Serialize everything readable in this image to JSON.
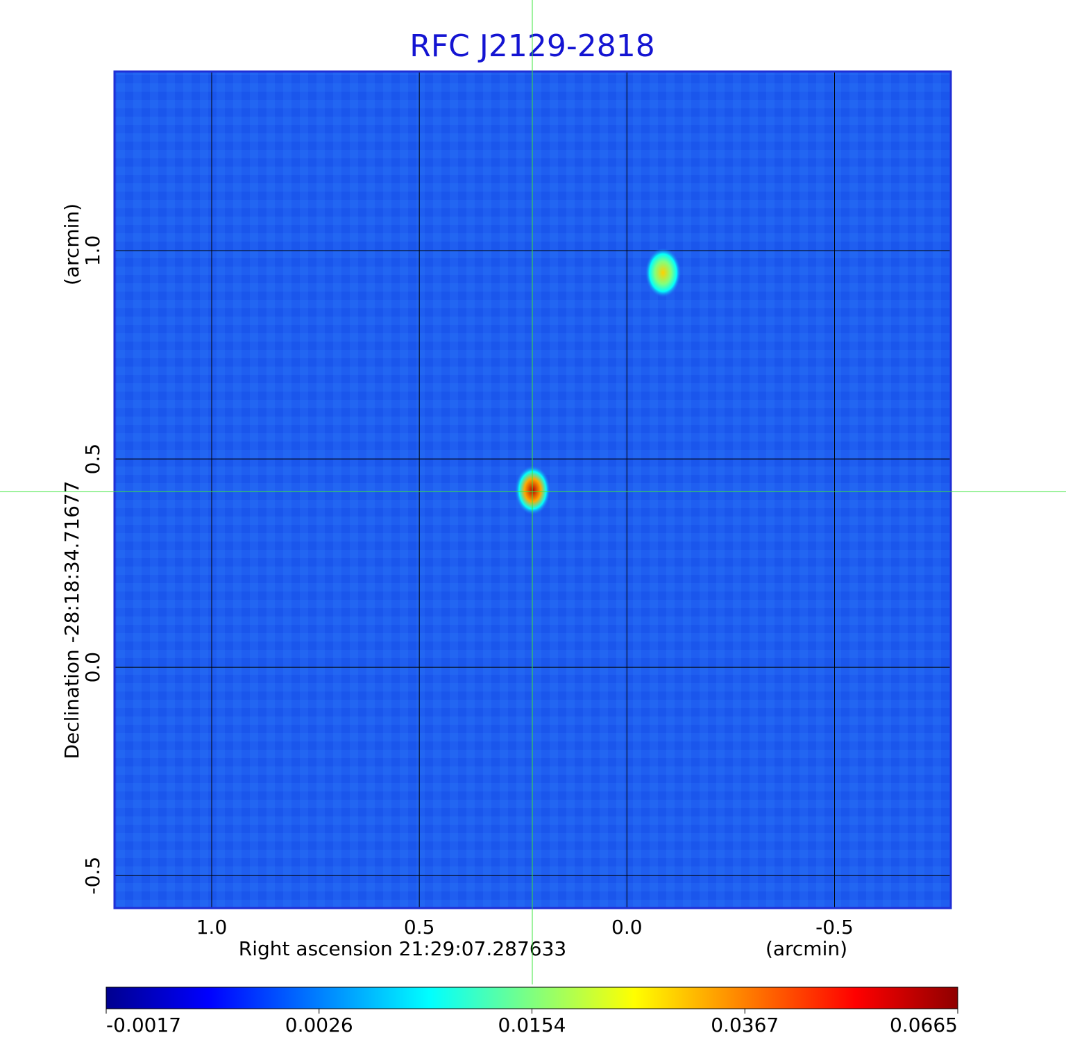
{
  "chart_data": {
    "type": "image",
    "title": "RFC J2129-2818",
    "xlabel": "Right ascension  21:29:07.287633",
    "xunit": "(arcmin)",
    "ylabel": "Declination  -28:18:34.71677",
    "yunit": "(arcmin)",
    "xlim": [
      1.234,
      -0.78
    ],
    "ylim": [
      -0.578,
      1.43
    ],
    "xticks": [
      {
        "value": 1,
        "label": "1.0"
      },
      0.5,
      {
        "value": 0,
        "label": "0.0"
      },
      -0.5
    ],
    "yticks": [
      -0.5,
      {
        "value": 0,
        "label": "0.0"
      },
      0.5,
      {
        "value": 1,
        "label": "1.0"
      }
    ],
    "grid": true,
    "colorbar": {
      "ticks": [
        -0.0017,
        0.0026,
        0.0154,
        0.0367,
        0.0665
      ]
    },
    "sources": {
      "x": [
        0.227,
        -0.087
      ],
      "y": [
        0.425,
        0.947
      ],
      "values": [
        0.06,
        0.03
      ]
    }
  }
}
